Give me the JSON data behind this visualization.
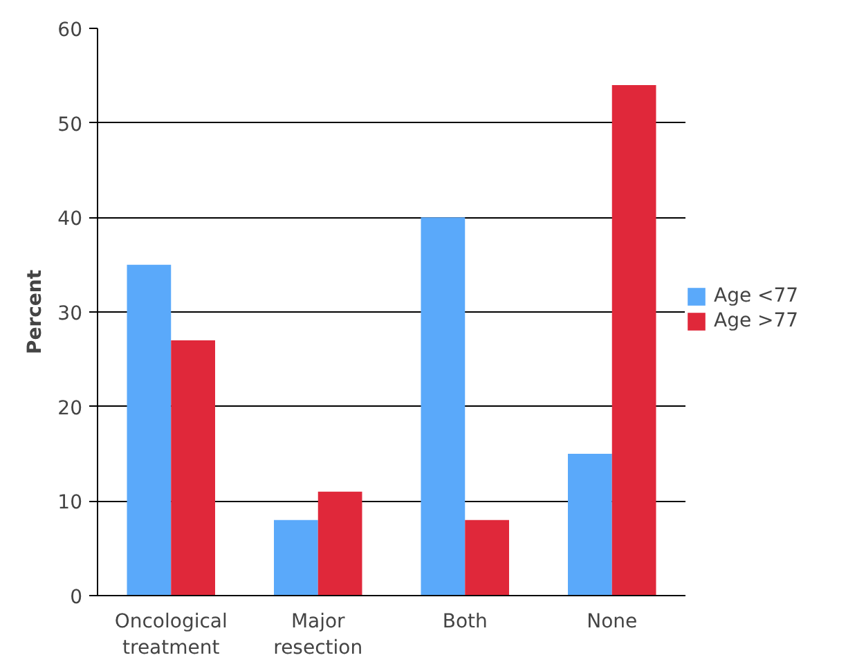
{
  "chart_data": {
    "type": "bar",
    "ylabel": "Percent",
    "categories": [
      "Oncological treatment",
      "Major resection",
      "Both",
      "None"
    ],
    "series": [
      {
        "name": "Age <77",
        "color": "#5aa9fa",
        "values": [
          35,
          8,
          40,
          15
        ]
      },
      {
        "name": "Age >77",
        "color": "#e0283a",
        "values": [
          27,
          11,
          8,
          54
        ]
      }
    ],
    "ylim": [
      0,
      60
    ],
    "yticks": [
      0,
      10,
      20,
      30,
      40,
      50,
      60
    ],
    "grid": "y",
    "legend": "right"
  }
}
